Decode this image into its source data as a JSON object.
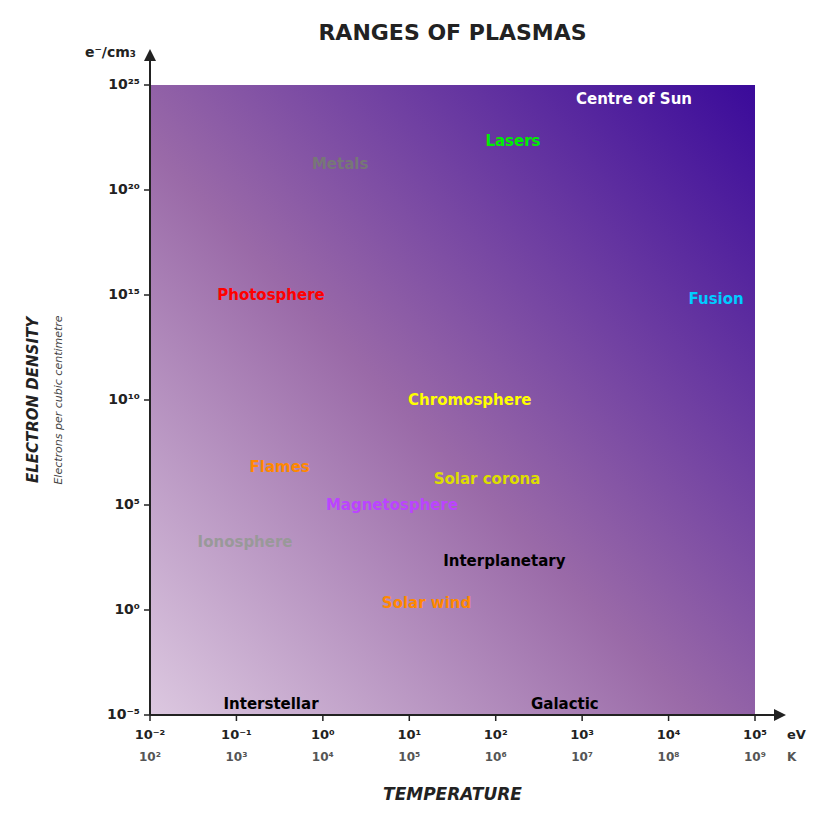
{
  "chart_data": {
    "type": "label_map",
    "title": "RANGES OF PLASMAS",
    "x_label": "TEMPERATURE",
    "y_label": "ELECTRON DENSITY",
    "y_sublabel": "Electrons per cubic centimetre",
    "x_unit": "eV",
    "x2_unit": "K",
    "y_unit": "e⁻/cm₃",
    "xlim": [
      -2,
      5
    ],
    "ylim": [
      -5,
      25
    ],
    "xticks": [
      {
        "value": -2,
        "label": "10⁻²"
      },
      {
        "value": -1,
        "label": "10⁻¹"
      },
      {
        "value": 0,
        "label": "10⁰"
      },
      {
        "value": 1,
        "label": "10¹"
      },
      {
        "value": 2,
        "label": "10²"
      },
      {
        "value": 3,
        "label": "10³"
      },
      {
        "value": 4,
        "label": "10⁴"
      },
      {
        "value": 5,
        "label": "10⁵"
      }
    ],
    "x2ticks": [
      {
        "value": -2,
        "label": "10²"
      },
      {
        "value": -1,
        "label": "10³"
      },
      {
        "value": 0,
        "label": "10⁴"
      },
      {
        "value": 1,
        "label": "10⁵"
      },
      {
        "value": 2,
        "label": "10⁶"
      },
      {
        "value": 3,
        "label": "10⁷"
      },
      {
        "value": 4,
        "label": "10⁸"
      },
      {
        "value": 5,
        "label": "10⁹"
      }
    ],
    "yticks": [
      {
        "value": -5,
        "label": "10⁻⁵"
      },
      {
        "value": 0,
        "label": "10⁰"
      },
      {
        "value": 5,
        "label": "10⁵"
      },
      {
        "value": 10,
        "label": "10¹⁰"
      },
      {
        "value": 15,
        "label": "10¹⁵"
      },
      {
        "value": 20,
        "label": "10²⁰"
      },
      {
        "value": 25,
        "label": "10²⁵"
      }
    ],
    "labels": [
      {
        "text": "Centre of Sun",
        "x": 3.6,
        "y": 24.3,
        "color": "#ffffff"
      },
      {
        "text": "Lasers",
        "x": 2.2,
        "y": 22.3,
        "color": "#00ee00"
      },
      {
        "text": "Metals",
        "x": 0.2,
        "y": 21.2,
        "color": "#777777"
      },
      {
        "text": "Photosphere",
        "x": -0.6,
        "y": 15.0,
        "color": "#ff0000"
      },
      {
        "text": "Fusion",
        "x": 4.55,
        "y": 14.8,
        "color": "#00ccff"
      },
      {
        "text": "Chromosphere",
        "x": 1.7,
        "y": 10.0,
        "color": "#ffff00"
      },
      {
        "text": "Flames",
        "x": -0.5,
        "y": 6.8,
        "color": "#ff8800"
      },
      {
        "text": "Solar corona",
        "x": 1.9,
        "y": 6.2,
        "color": "#dddd00"
      },
      {
        "text": "Magnetosphere",
        "x": 0.8,
        "y": 5.0,
        "color": "#bb44ff"
      },
      {
        "text": "Ionosphere",
        "x": -0.9,
        "y": 3.2,
        "color": "#999999"
      },
      {
        "text": "Interplanetary",
        "x": 2.1,
        "y": 2.3,
        "color": "#000000"
      },
      {
        "text": "Solar wind",
        "x": 1.2,
        "y": 0.3,
        "color": "#ff8800"
      },
      {
        "text": "Interstellar",
        "x": -0.6,
        "y": -4.5,
        "color": "#000000"
      },
      {
        "text": "Galactic",
        "x": 2.8,
        "y": -4.5,
        "color": "#000000"
      }
    ]
  }
}
